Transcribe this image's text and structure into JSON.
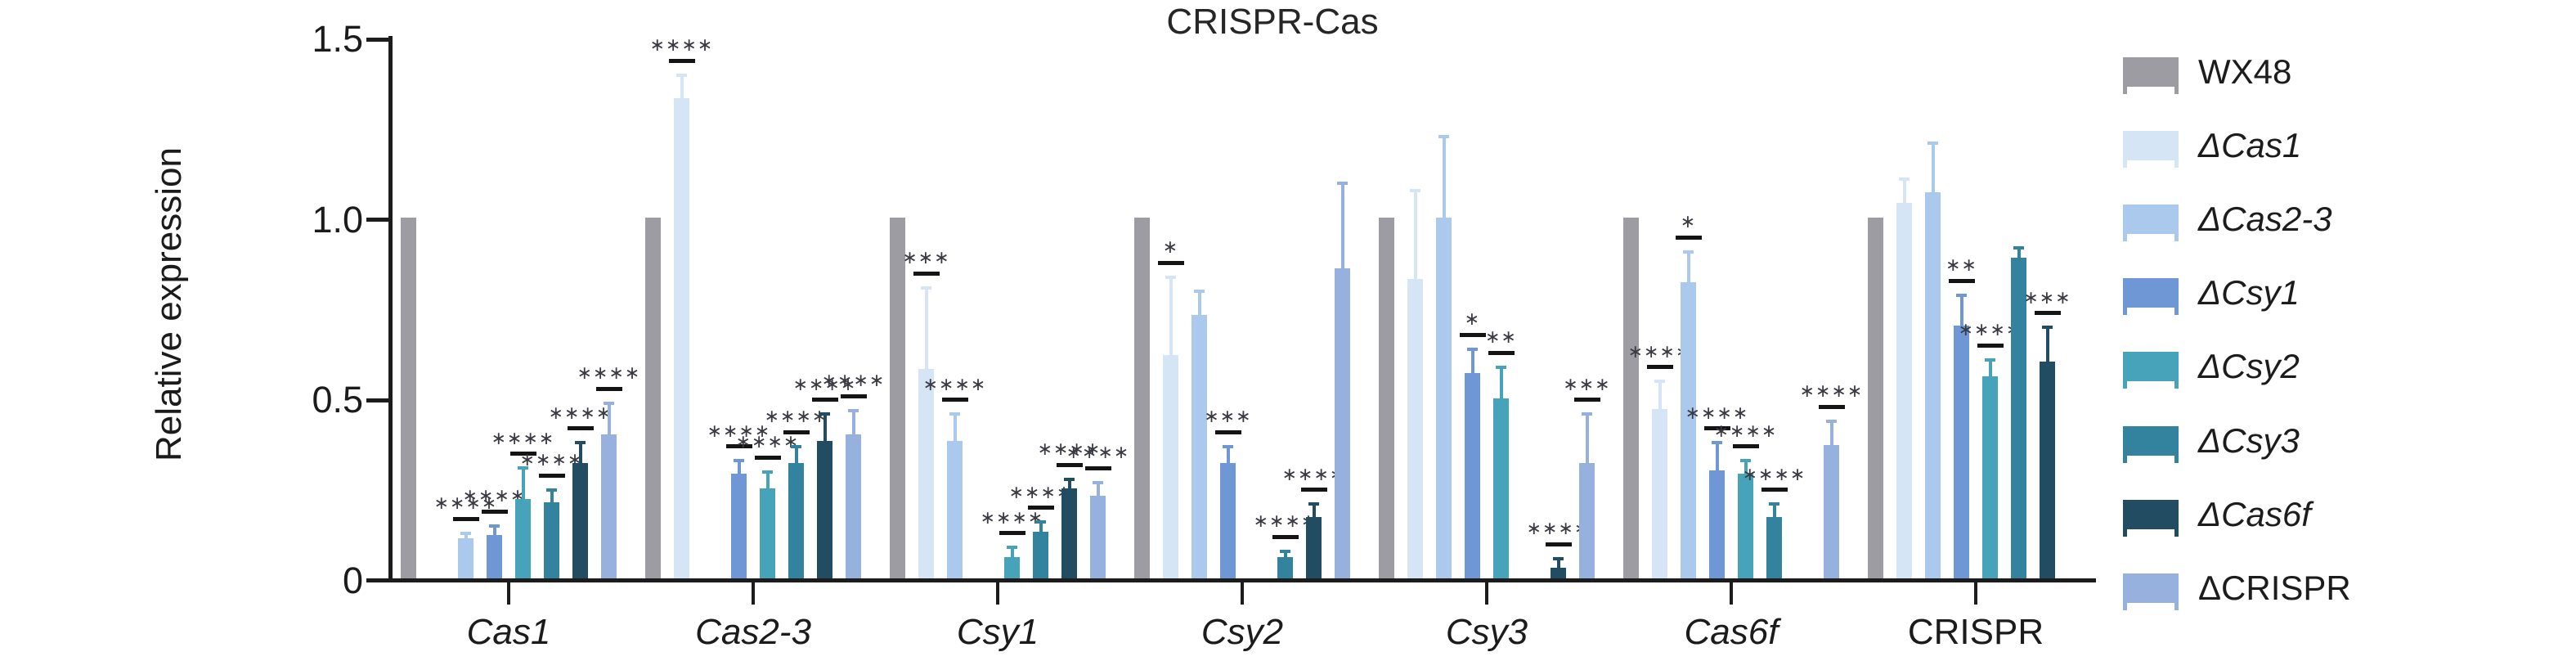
{
  "title": "CRISPR-Cas",
  "y_axis_title": "Relative expression",
  "colors": {
    "background": "#ffffff",
    "axis": "#1c1c1c",
    "significance_line": "#141414",
    "significance_asterisk": "#3a3a43",
    "text": "#1b1b1b"
  },
  "chart_data": {
    "type": "bar",
    "title": "CRISPR-Cas",
    "xlabel": "",
    "ylabel": "Relative expression",
    "ylim": [
      0,
      1.5
    ],
    "grid": false,
    "legend_position": "right",
    "yticks": [
      {
        "value": 0.0,
        "label": "0"
      },
      {
        "value": 0.5,
        "label": "0.5"
      },
      {
        "value": 1.0,
        "label": "1.0"
      },
      {
        "value": 1.5,
        "label": "1.5"
      }
    ],
    "categories": [
      "Cas1",
      "Cas2-3",
      "Csy1",
      "Csy2",
      "Csy3",
      "Cas6f",
      "CRISPR"
    ],
    "categories_italic": [
      true,
      true,
      true,
      true,
      true,
      true,
      false
    ],
    "error_bar_type": "sd_upper",
    "significance_note": "asterisk marks shown above error bars vs WX48",
    "series": [
      {
        "name": "WX48",
        "italic": false,
        "color": "#9c9ca2",
        "values": [
          1.0,
          1.0,
          1.0,
          1.0,
          1.0,
          1.0,
          1.0
        ],
        "error_tops": [
          1.0,
          1.0,
          1.0,
          1.0,
          1.0,
          1.0,
          1.0
        ],
        "sig": [
          "",
          "",
          "",
          "",
          "",
          "",
          ""
        ]
      },
      {
        "name": "ΔCas1",
        "italic": true,
        "color": "#d5e5f6",
        "values": [
          0,
          1.33,
          0.58,
          0.62,
          0.83,
          0.47,
          1.04
        ],
        "error_tops": [
          0,
          1.4,
          0.81,
          0.84,
          1.08,
          0.55,
          1.11
        ],
        "sig": [
          "",
          "****",
          "***",
          "*",
          "",
          "****",
          ""
        ]
      },
      {
        "name": "ΔCas2-3",
        "italic": true,
        "color": "#abc9ec",
        "values": [
          0.11,
          0,
          0.38,
          0.73,
          1.0,
          0.82,
          1.07
        ],
        "error_tops": [
          0.13,
          0,
          0.46,
          0.8,
          1.23,
          0.91,
          1.21
        ],
        "sig": [
          "****",
          "",
          "****",
          "",
          "",
          "*",
          ""
        ]
      },
      {
        "name": "ΔCsy1",
        "italic": true,
        "color": "#7097d5",
        "values": [
          0.12,
          0.29,
          0,
          0.32,
          0.57,
          0.3,
          0.7
        ],
        "error_tops": [
          0.15,
          0.33,
          0,
          0.37,
          0.64,
          0.38,
          0.79
        ],
        "sig": [
          "****",
          "****",
          "",
          "***",
          "*",
          "****",
          "**"
        ]
      },
      {
        "name": "ΔCsy2",
        "italic": true,
        "color": "#47a3b9",
        "values": [
          0.22,
          0.25,
          0.06,
          0,
          0.5,
          0.29,
          0.56
        ],
        "error_tops": [
          0.31,
          0.3,
          0.09,
          0,
          0.59,
          0.33,
          0.61
        ],
        "sig": [
          "****",
          "****",
          "****",
          "",
          "**",
          "****",
          "****"
        ]
      },
      {
        "name": "ΔCsy3",
        "italic": true,
        "color": "#34839e",
        "values": [
          0.21,
          0.32,
          0.13,
          0.06,
          0,
          0.17,
          0.89
        ],
        "error_tops": [
          0.25,
          0.37,
          0.16,
          0.08,
          0,
          0.21,
          0.92
        ],
        "sig": [
          "****",
          "****",
          "****",
          "****",
          "",
          "****",
          ""
        ]
      },
      {
        "name": "ΔCas6f",
        "italic": true,
        "color": "#214c62",
        "values": [
          0.32,
          0.38,
          0.25,
          0.17,
          0.03,
          0,
          0.6
        ],
        "error_tops": [
          0.38,
          0.46,
          0.28,
          0.21,
          0.06,
          0,
          0.7
        ],
        "sig": [
          "****",
          "****",
          "****",
          "****",
          "****",
          "",
          "***"
        ]
      },
      {
        "name": "ΔCRISPR",
        "italic": false,
        "color": "#96b1de",
        "values": [
          0.4,
          0.4,
          0.23,
          0.86,
          0.32,
          0.37,
          0
        ],
        "error_tops": [
          0.49,
          0.47,
          0.27,
          1.1,
          0.46,
          0.44,
          0
        ],
        "sig": [
          "****",
          "****",
          "****",
          "",
          "***",
          "****",
          ""
        ]
      }
    ]
  }
}
